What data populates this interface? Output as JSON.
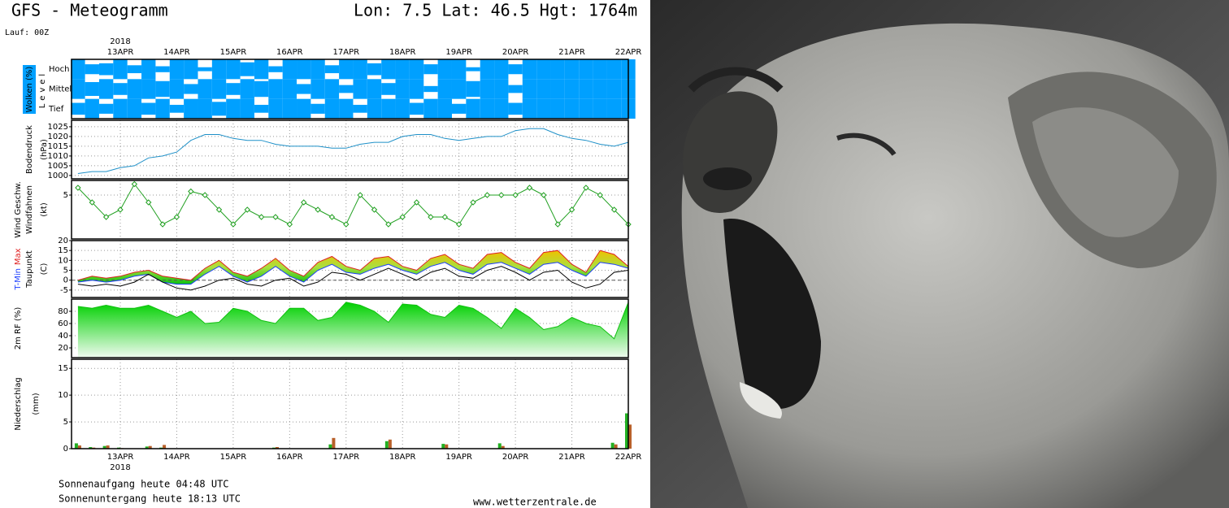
{
  "header": {
    "title": "GFS - Meteogramm",
    "location": "Lon: 7.5 Lat: 46.5 Hgt: 1764m",
    "run": "Lauf: 00Z"
  },
  "footer": {
    "sunrise": "Sonnenaufgang heute 04:48 UTC",
    "sunset": "Sonnenuntergang heute 18:13 UTC",
    "source": "www.wetterzentrale.de"
  },
  "chart_data": {
    "type": "meteogram",
    "year": "2018",
    "x": [
      12.25,
      12.5,
      12.75,
      13,
      13.25,
      13.5,
      13.75,
      14,
      14.25,
      14.5,
      14.75,
      15,
      15.25,
      15.5,
      15.75,
      16,
      16.25,
      16.5,
      16.75,
      17,
      17.25,
      17.5,
      17.75,
      18,
      18.25,
      18.5,
      18.75,
      19,
      19.25,
      19.5,
      19.75,
      20,
      20.25,
      20.5,
      20.75,
      21,
      21.25,
      21.5,
      21.75,
      22
    ],
    "xlim": [
      12.136,
      22
    ],
    "xticks": [
      {
        "value": 13,
        "label": "13APR"
      },
      {
        "value": 14,
        "label": "14APR"
      },
      {
        "value": 15,
        "label": "15APR"
      },
      {
        "value": 16,
        "label": "16APR"
      },
      {
        "value": 17,
        "label": "17APR"
      },
      {
        "value": 18,
        "label": "18APR"
      },
      {
        "value": 19,
        "label": "19APR"
      },
      {
        "value": 20,
        "label": "20APR"
      },
      {
        "value": 21,
        "label": "21APR"
      },
      {
        "value": 22,
        "label": "22APR"
      }
    ],
    "grid": true,
    "panels": [
      {
        "type": "cloud-layers",
        "ylabel": "Wolken (%)",
        "level_label": "Level",
        "ylim": [
          0,
          100
        ],
        "series": [
          {
            "name": "Hoch",
            "color": "#00a0ff",
            "values": [
              100,
              50,
              60,
              100,
              40,
              100,
              30,
              100,
              100,
              20,
              100,
              100,
              70,
              100,
              30,
              100,
              100,
              100,
              40,
              100,
              100,
              60,
              100,
              100,
              100,
              50,
              100,
              100,
              20,
              100,
              100,
              50,
              100,
              100,
              100,
              100,
              100,
              100,
              100,
              100
            ]
          },
          {
            "name": "Mittel",
            "color": "#00a0ff",
            "values": [
              100,
              70,
              100,
              60,
              100,
              100,
              80,
              100,
              50,
              100,
              100,
              60,
              100,
              80,
              100,
              100,
              50,
              100,
              100,
              40,
              100,
              100,
              60,
              100,
              100,
              30,
              100,
              100,
              80,
              100,
              100,
              40,
              100,
              100,
              100,
              100,
              100,
              100,
              100,
              100
            ]
          },
          {
            "name": "Tief",
            "color": "#00a0ff",
            "values": [
              60,
              100,
              50,
              100,
              100,
              60,
              100,
              40,
              100,
              100,
              70,
              100,
              100,
              40,
              100,
              100,
              100,
              50,
              100,
              100,
              40,
              100,
              100,
              100,
              60,
              100,
              100,
              50,
              100,
              100,
              100,
              60,
              100,
              100,
              100,
              100,
              100,
              100,
              100,
              100
            ]
          }
        ]
      },
      {
        "type": "line",
        "ylabel": [
          "Bodendruck",
          "(hPa)"
        ],
        "ylim": [
          998.3,
          1028.3
        ],
        "yticks": [
          1000,
          1005,
          1010,
          1015,
          1020,
          1025
        ],
        "series": [
          {
            "color": "#1e90c8",
            "values": [
              1001,
              1002,
              1002,
              1004,
              1005,
              1009,
              1010,
              1012,
              1018,
              1021,
              1021,
              1019,
              1018,
              1018,
              1016,
              1015,
              1015,
              1015,
              1014,
              1014,
              1016,
              1017,
              1017,
              1020,
              1021,
              1021,
              1019,
              1018,
              1019,
              1020,
              1020,
              1023,
              1024,
              1024,
              1021,
              1019,
              1018,
              1016,
              1015,
              1017
            ]
          }
        ]
      },
      {
        "type": "wind",
        "ylabel": [
          "Windfahnen",
          "(kt)"
        ],
        "ylim": [
          -1,
          7
        ],
        "yticks": [
          5
        ],
        "series": [
          {
            "name": "Wind Geschw.",
            "color": "#22a022",
            "values": [
              6,
              4,
              2,
              3,
              6.5,
              4,
              1,
              2,
              5.5,
              5,
              3,
              1,
              3,
              2,
              2,
              1,
              4,
              3,
              2,
              1,
              5,
              3,
              1,
              2,
              4,
              2,
              2,
              1,
              4,
              5,
              5,
              5,
              6,
              5,
              1,
              3,
              6,
              5,
              3,
              1
            ]
          }
        ]
      },
      {
        "type": "temperature",
        "ylabel": [
          "Taupunkt",
          "(C)"
        ],
        "ylim": [
          -8.75,
          20
        ],
        "yticks": [
          -5,
          0,
          5,
          10,
          15,
          20
        ],
        "series": [
          {
            "name": "T-Min",
            "color": "#1a3cff",
            "values": [
              -1,
              0,
              -1,
              0,
              2,
              3,
              -1,
              -2,
              -2,
              3,
              7,
              2,
              -1,
              2,
              7,
              2,
              -1,
              5,
              8,
              4,
              3,
              6,
              8,
              5,
              3,
              7,
              9,
              5,
              3,
              8,
              9,
              6,
              3,
              8,
              9,
              5,
              2,
              9,
              8,
              6
            ]
          },
          {
            "name": "Max",
            "color": "#e02020",
            "values": [
              0,
              2,
              1,
              2,
              4,
              5,
              2,
              1,
              0,
              6,
              10,
              4,
              2,
              6,
              11,
              5,
              2,
              9,
              12,
              7,
              5,
              11,
              12,
              7,
              5,
              11,
              13,
              8,
              6,
              13,
              14,
              9,
              6,
              14,
              15,
              8,
              4,
              15,
              13,
              7
            ]
          },
          {
            "name": "Taupunkt",
            "color": "#000000",
            "values": [
              -2,
              -3,
              -2,
              -3,
              -1,
              3,
              -1,
              -4,
              -5,
              -3,
              0,
              1,
              -2,
              -3,
              0,
              1,
              -3,
              -1,
              4,
              3,
              0,
              3,
              6,
              3,
              0,
              4,
              6,
              2,
              1,
              5,
              7,
              4,
              0,
              4,
              5,
              -1,
              -4,
              -2,
              4,
              5
            ]
          }
        ]
      },
      {
        "type": "area",
        "ylim": [
          4,
          100
        ],
        "yticks": [
          20,
          40,
          60,
          80
        ],
        "series": [
          {
            "name": "2m RF (%)",
            "color": "#10c010",
            "values": [
              88,
              85,
              90,
              85,
              85,
              90,
              80,
              70,
              80,
              60,
              62,
              85,
              80,
              65,
              60,
              85,
              85,
              65,
              70,
              95,
              90,
              80,
              62,
              92,
              90,
              75,
              70,
              90,
              85,
              70,
              52,
              85,
              70,
              50,
              55,
              70,
              60,
              55,
              35,
              95
            ]
          }
        ]
      },
      {
        "type": "bar",
        "ylabel": [
          "Niederschlag",
          "(mm)"
        ],
        "ylim": [
          0,
          16.7
        ],
        "yticks": [
          0,
          5,
          10,
          15
        ],
        "series": [
          {
            "color": "#22b022",
            "values": [
              1,
              0.3,
              0.5,
              0.2,
              0,
              0.4,
              0.2,
              0,
              0,
              0,
              0,
              0,
              0,
              0,
              0.2,
              0,
              0,
              0,
              0.8,
              0,
              0,
              0,
              1.4,
              0,
              0,
              0,
              0.9,
              0,
              0,
              0,
              1,
              0,
              0,
              0,
              0,
              0,
              0,
              0,
              1.1,
              6.6
            ]
          },
          {
            "color": "#b8602a",
            "values": [
              0.6,
              0.2,
              0.6,
              0.1,
              0,
              0.5,
              0.7,
              0,
              0,
              0,
              0,
              0,
              0,
              0,
              0.3,
              0,
              0,
              0,
              2,
              0,
              0,
              0,
              1.7,
              0,
              0,
              0,
              0.8,
              0,
              0,
              0,
              0.5,
              0,
              0,
              0,
              0,
              0,
              0,
              0,
              0.8,
              4.5
            ]
          }
        ]
      }
    ]
  }
}
